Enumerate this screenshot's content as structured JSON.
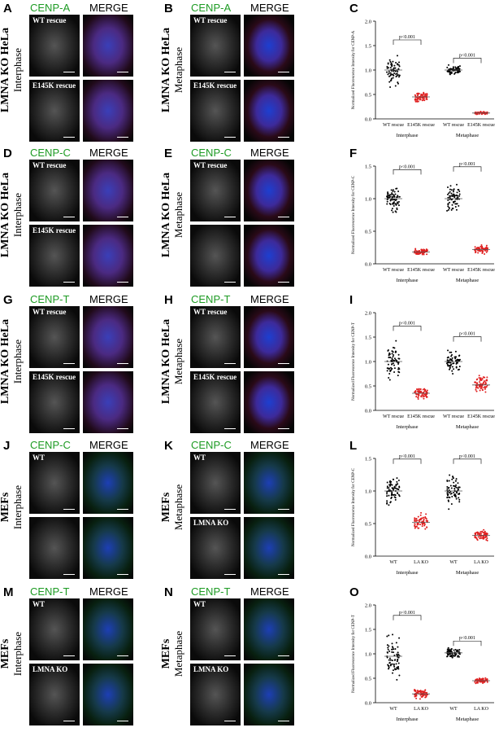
{
  "panels": [
    {
      "id": "A",
      "stain": "CENP-A",
      "merge": "MERGE",
      "cell": "LMNA KO HeLa",
      "phase": "Interphase",
      "top_caption": "WT rescue",
      "bottom_caption": "E145K rescue",
      "merge_style": "merge"
    },
    {
      "id": "B",
      "stain": "CENP-A",
      "merge": "MERGE",
      "cell": "LMNA KO HeLa",
      "phase": "Metaphase",
      "top_caption": "WT rescue",
      "bottom_caption": "E145K rescue",
      "merge_style": "mergeB"
    },
    {
      "id": "D",
      "stain": "CENP-C",
      "merge": "MERGE",
      "cell": "LMNA KO HeLa",
      "phase": "Interphase",
      "top_caption": "WT rescue",
      "bottom_caption": "E145K rescue",
      "merge_style": "merge"
    },
    {
      "id": "E",
      "stain": "CENP-C",
      "merge": "MERGE",
      "cell": "LMNA KO HeLa",
      "phase": "Metaphase",
      "top_caption": "WT rescue",
      "bottom_caption": "",
      "merge_style": "mergeB"
    },
    {
      "id": "G",
      "stain": "CENP-T",
      "merge": "MERGE",
      "cell": "LMNA KO HeLa",
      "phase": "Interphase",
      "top_caption": "WT rescue",
      "bottom_caption": "E145K rescue",
      "merge_style": "merge"
    },
    {
      "id": "H",
      "stain": "CENP-T",
      "merge": "MERGE",
      "cell": "LMNA KO HeLa",
      "phase": "Metaphase",
      "top_caption": "WT rescue",
      "bottom_caption": "E145K rescue",
      "merge_style": "mergeB"
    },
    {
      "id": "J",
      "stain": "CENP-C",
      "merge": "MERGE",
      "cell": "MEFs",
      "phase": "Interphase",
      "top_caption": "WT",
      "bottom_caption": "",
      "merge_style": "mergeG"
    },
    {
      "id": "K",
      "stain": "CENP-C",
      "merge": "MERGE",
      "cell": "MEFs",
      "phase": "Metaphase",
      "top_caption": "WT",
      "bottom_caption": "LMNA KO",
      "merge_style": "mergeG"
    },
    {
      "id": "M",
      "stain": "CENP-T",
      "merge": "MERGE",
      "cell": "MEFs",
      "phase": "Interphase",
      "top_caption": "WT",
      "bottom_caption": "LMNA KO",
      "merge_style": "mergeG"
    },
    {
      "id": "N",
      "stain": "CENP-T",
      "merge": "MERGE",
      "cell": "MEFs",
      "phase": "Metaphase",
      "top_caption": "WT",
      "bottom_caption": "LMNA KO",
      "merge_style": "mergeG"
    }
  ],
  "chart_data": [
    {
      "id": "C",
      "type": "scatter",
      "ylabel": "Normalized Fluorescence Intensity for CENP-A",
      "ylim": [
        0,
        2.0
      ],
      "yticks": [
        "0.0",
        "0.5",
        "1.0",
        "1.5",
        "2.0"
      ],
      "categories": [
        "WT rescue",
        "E145K rescue",
        "WT rescue",
        "E145K rescue"
      ],
      "groups": [
        "Interphase",
        "Metaphase"
      ],
      "means": [
        1.0,
        0.45,
        1.0,
        0.12
      ],
      "spread": [
        0.25,
        0.08,
        0.08,
        0.02
      ],
      "colors": [
        "#000000",
        "#e02020",
        "#000000",
        "#e02020"
      ],
      "significance": [
        "p<0.001",
        "p<0.001"
      ]
    },
    {
      "id": "F",
      "type": "scatter",
      "ylabel": "Normalized Fluorescence Intensity for CENP-C",
      "ylim": [
        0,
        1.5
      ],
      "yticks": [
        "0.0",
        "0.5",
        "1.0",
        "1.5"
      ],
      "categories": [
        "WT rescue",
        "E145K rescue",
        "WT rescue",
        "E145K rescue"
      ],
      "groups": [
        "Interphase",
        "Metaphase"
      ],
      "means": [
        1.0,
        0.18,
        1.0,
        0.22
      ],
      "spread": [
        0.18,
        0.04,
        0.2,
        0.05
      ],
      "colors": [
        "#000000",
        "#e02020",
        "#000000",
        "#e02020"
      ],
      "significance": [
        "p<0.001",
        "p<0.001"
      ]
    },
    {
      "id": "I",
      "type": "scatter",
      "ylabel": "Normalized Fluorescence Intensity for CENP-T",
      "ylim": [
        0,
        2.0
      ],
      "yticks": [
        "0.0",
        "0.5",
        "1.0",
        "1.5",
        "2.0"
      ],
      "categories": [
        "WT rescue",
        "E145K rescue",
        "WT rescue",
        "E145K rescue"
      ],
      "groups": [
        "Interphase",
        "Metaphase"
      ],
      "means": [
        1.0,
        0.35,
        1.0,
        0.52
      ],
      "spread": [
        0.3,
        0.1,
        0.2,
        0.15
      ],
      "colors": [
        "#000000",
        "#e02020",
        "#000000",
        "#e02020"
      ],
      "significance": [
        "p<0.001",
        "p<0.001"
      ]
    },
    {
      "id": "L",
      "type": "scatter",
      "ylabel": "Normalized Fluorescence Intensity for CENP-C",
      "ylim": [
        0,
        1.5
      ],
      "yticks": [
        "0.0",
        "0.5",
        "1.0",
        "1.5"
      ],
      "categories": [
        "WT",
        "LA KO",
        "WT",
        "LA KO"
      ],
      "groups": [
        "Interphase",
        "Metaphase"
      ],
      "means": [
        1.0,
        0.52,
        1.0,
        0.32
      ],
      "spread": [
        0.2,
        0.1,
        0.2,
        0.07
      ],
      "colors": [
        "#000000",
        "#e02020",
        "#000000",
        "#e02020"
      ],
      "significance": [
        "p<0.001",
        "p<0.001"
      ]
    },
    {
      "id": "O",
      "type": "scatter",
      "ylabel": "Normalized Fluorescence Intensity for CENP-T",
      "ylim": [
        0,
        2.0
      ],
      "yticks": [
        "0.0",
        "0.5",
        "1.0",
        "1.5",
        "2.0"
      ],
      "categories": [
        "WT",
        "LA KO",
        "WT",
        "LA KO"
      ],
      "groups": [
        "Interphase",
        "Metaphase"
      ],
      "means": [
        0.95,
        0.18,
        1.02,
        0.45
      ],
      "spread": [
        0.35,
        0.08,
        0.08,
        0.05
      ],
      "colors": [
        "#000000",
        "#e02020",
        "#000000",
        "#e02020"
      ],
      "significance": [
        "p<0.001",
        "p<0.001"
      ]
    }
  ],
  "chart_letters": [
    "C",
    "F",
    "I",
    "L",
    "O"
  ]
}
